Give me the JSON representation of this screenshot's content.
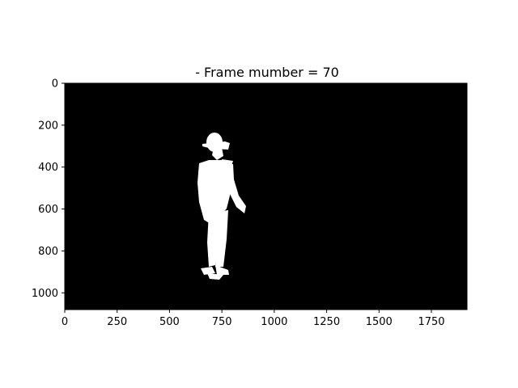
{
  "chart_data": {
    "type": "image",
    "title": "- Frame mumber = 70",
    "xlabel": "",
    "ylabel": "",
    "xlim": [
      0,
      1920
    ],
    "ylim": [
      1080,
      0
    ],
    "x_ticks": [
      0,
      250,
      500,
      750,
      1000,
      1250,
      1500,
      1750
    ],
    "y_ticks": [
      0,
      200,
      400,
      600,
      800,
      1000
    ],
    "background_color": "#000000",
    "mask_color": "#ffffff",
    "mask_description": "white silhouette of a walking person",
    "grid": false
  }
}
